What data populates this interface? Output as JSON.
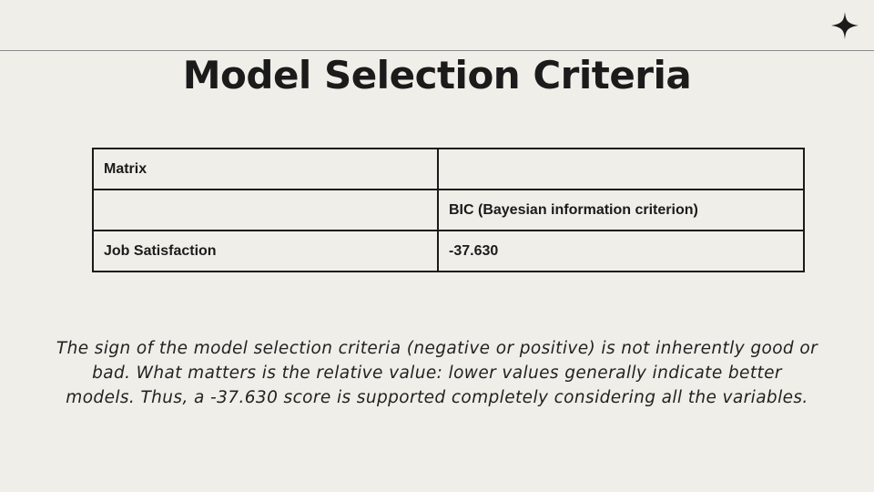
{
  "slide": {
    "title": "Model Selection Criteria",
    "decor_icon": "four-point-star-icon",
    "table": {
      "rows": [
        [
          "Matrix",
          ""
        ],
        [
          "",
          "BIC (Bayesian information criterion)"
        ],
        [
          "Job Satisfaction",
          "-37.630"
        ]
      ]
    },
    "note": "The sign of the model selection criteria (negative or positive) is not inherently good or bad. What matters is the relative value: lower values generally indicate better models. Thus, a -37.630 score is supported completely considering all the variables."
  },
  "colors": {
    "background": "#efeee8",
    "text": "#1b1b1b",
    "table_border": "#1a1a1a",
    "rule": "#8c8c8c"
  }
}
